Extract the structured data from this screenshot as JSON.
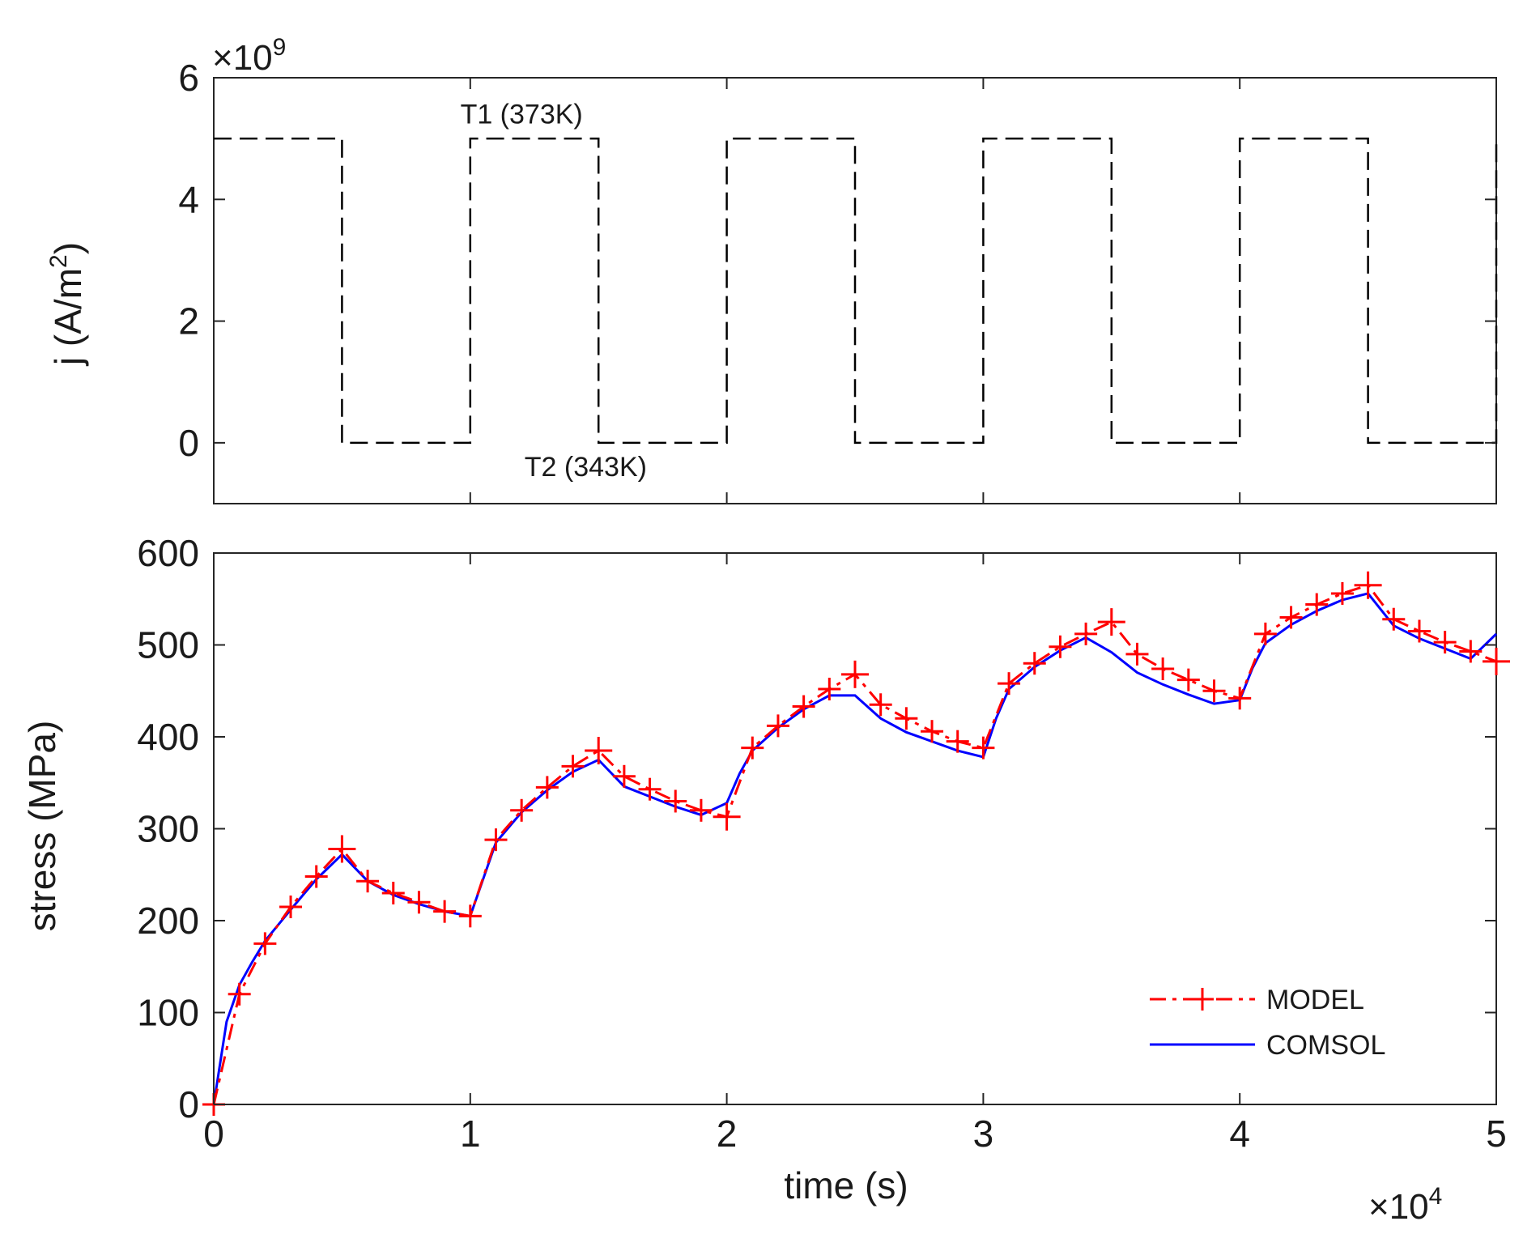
{
  "chart_data": [
    {
      "type": "line",
      "id": "current-density",
      "ylabel": "j (A/m",
      "ylabel_sup": "2",
      "ylabel_close": ")",
      "ylim": [
        -1,
        6
      ],
      "y_ticks": [
        0,
        2,
        4,
        6
      ],
      "y_tick_labels": [
        "0",
        "2",
        "4",
        "6"
      ],
      "y_exponent_prefix": "×10",
      "y_exponent_power": "9",
      "xlim": [
        0,
        5
      ],
      "annotations": [
        {
          "text": "T1 (373K)",
          "x": 1.2,
          "y": 5.25
        },
        {
          "text": "T2 (343K)",
          "x": 1.45,
          "y": -0.55
        }
      ],
      "series": [
        {
          "name": "j",
          "style": "dashed",
          "color": "#000000",
          "x": [
            0,
            0.5,
            0.5,
            1.0,
            1.0,
            1.5,
            1.5,
            2.0,
            2.0,
            2.5,
            2.5,
            3.0,
            3.0,
            3.5,
            3.5,
            4.0,
            4.0,
            4.5,
            4.5,
            5.0,
            5.0
          ],
          "y": [
            5,
            5,
            0,
            0,
            5,
            5,
            0,
            0,
            5,
            5,
            0,
            0,
            5,
            5,
            0,
            0,
            5,
            5,
            0,
            0,
            5
          ]
        }
      ]
    },
    {
      "type": "line",
      "id": "stress",
      "ylabel": "stress (MPa)",
      "xlabel": "time (s)",
      "xlim": [
        0,
        5
      ],
      "ylim": [
        0,
        600
      ],
      "x_ticks": [
        0,
        1,
        2,
        3,
        4,
        5
      ],
      "x_tick_labels": [
        "0",
        "1",
        "2",
        "3",
        "4",
        "5"
      ],
      "y_ticks": [
        0,
        100,
        200,
        300,
        400,
        500,
        600
      ],
      "y_tick_labels": [
        "0",
        "100",
        "200",
        "300",
        "400",
        "500",
        "600"
      ],
      "x_exponent_prefix": "×10",
      "x_exponent_power": "4",
      "legend_position": "bottom-right",
      "series": [
        {
          "name": "MODEL",
          "style": "dash-dot-plus",
          "color": "#ff0000",
          "x": [
            0,
            0.1,
            0.2,
            0.3,
            0.4,
            0.5,
            0.6,
            0.7,
            0.8,
            0.9,
            1.0,
            1.1,
            1.2,
            1.3,
            1.4,
            1.5,
            1.6,
            1.7,
            1.8,
            1.9,
            2.0,
            2.1,
            2.2,
            2.3,
            2.4,
            2.5,
            2.6,
            2.7,
            2.8,
            2.9,
            3.0,
            3.1,
            3.2,
            3.3,
            3.4,
            3.5,
            3.6,
            3.7,
            3.8,
            3.9,
            4.0,
            4.1,
            4.2,
            4.3,
            4.4,
            4.5,
            4.6,
            4.7,
            4.8,
            4.9,
            5.0
          ],
          "y": [
            0,
            120,
            175,
            215,
            248,
            278,
            243,
            230,
            220,
            210,
            205,
            288,
            320,
            345,
            368,
            385,
            357,
            343,
            330,
            320,
            313,
            388,
            412,
            433,
            452,
            468,
            435,
            420,
            406,
            395,
            388,
            458,
            480,
            498,
            512,
            525,
            490,
            474,
            462,
            450,
            442,
            512,
            530,
            544,
            556,
            565,
            528,
            515,
            503,
            493,
            482
          ]
        },
        {
          "name": "COMSOL",
          "style": "solid",
          "color": "#0000ff",
          "x": [
            0,
            0.05,
            0.1,
            0.15,
            0.2,
            0.3,
            0.4,
            0.5,
            0.6,
            0.7,
            0.8,
            0.9,
            1.0,
            1.05,
            1.1,
            1.2,
            1.3,
            1.4,
            1.5,
            1.6,
            1.7,
            1.8,
            1.9,
            2.0,
            2.05,
            2.1,
            2.2,
            2.3,
            2.4,
            2.5,
            2.6,
            2.7,
            2.8,
            2.9,
            3.0,
            3.05,
            3.1,
            3.2,
            3.3,
            3.4,
            3.5,
            3.6,
            3.7,
            3.8,
            3.9,
            4.0,
            4.05,
            4.1,
            4.2,
            4.3,
            4.4,
            4.5,
            4.6,
            4.7,
            4.8,
            4.9,
            5.0
          ],
          "y": [
            0,
            90,
            130,
            155,
            178,
            212,
            245,
            272,
            243,
            228,
            218,
            210,
            205,
            245,
            285,
            318,
            342,
            362,
            375,
            346,
            335,
            324,
            315,
            328,
            360,
            385,
            410,
            430,
            445,
            445,
            420,
            405,
            395,
            385,
            378,
            420,
            452,
            476,
            494,
            508,
            492,
            470,
            457,
            446,
            436,
            440,
            475,
            502,
            522,
            537,
            549,
            556,
            521,
            507,
            496,
            485,
            512
          ]
        }
      ]
    }
  ]
}
